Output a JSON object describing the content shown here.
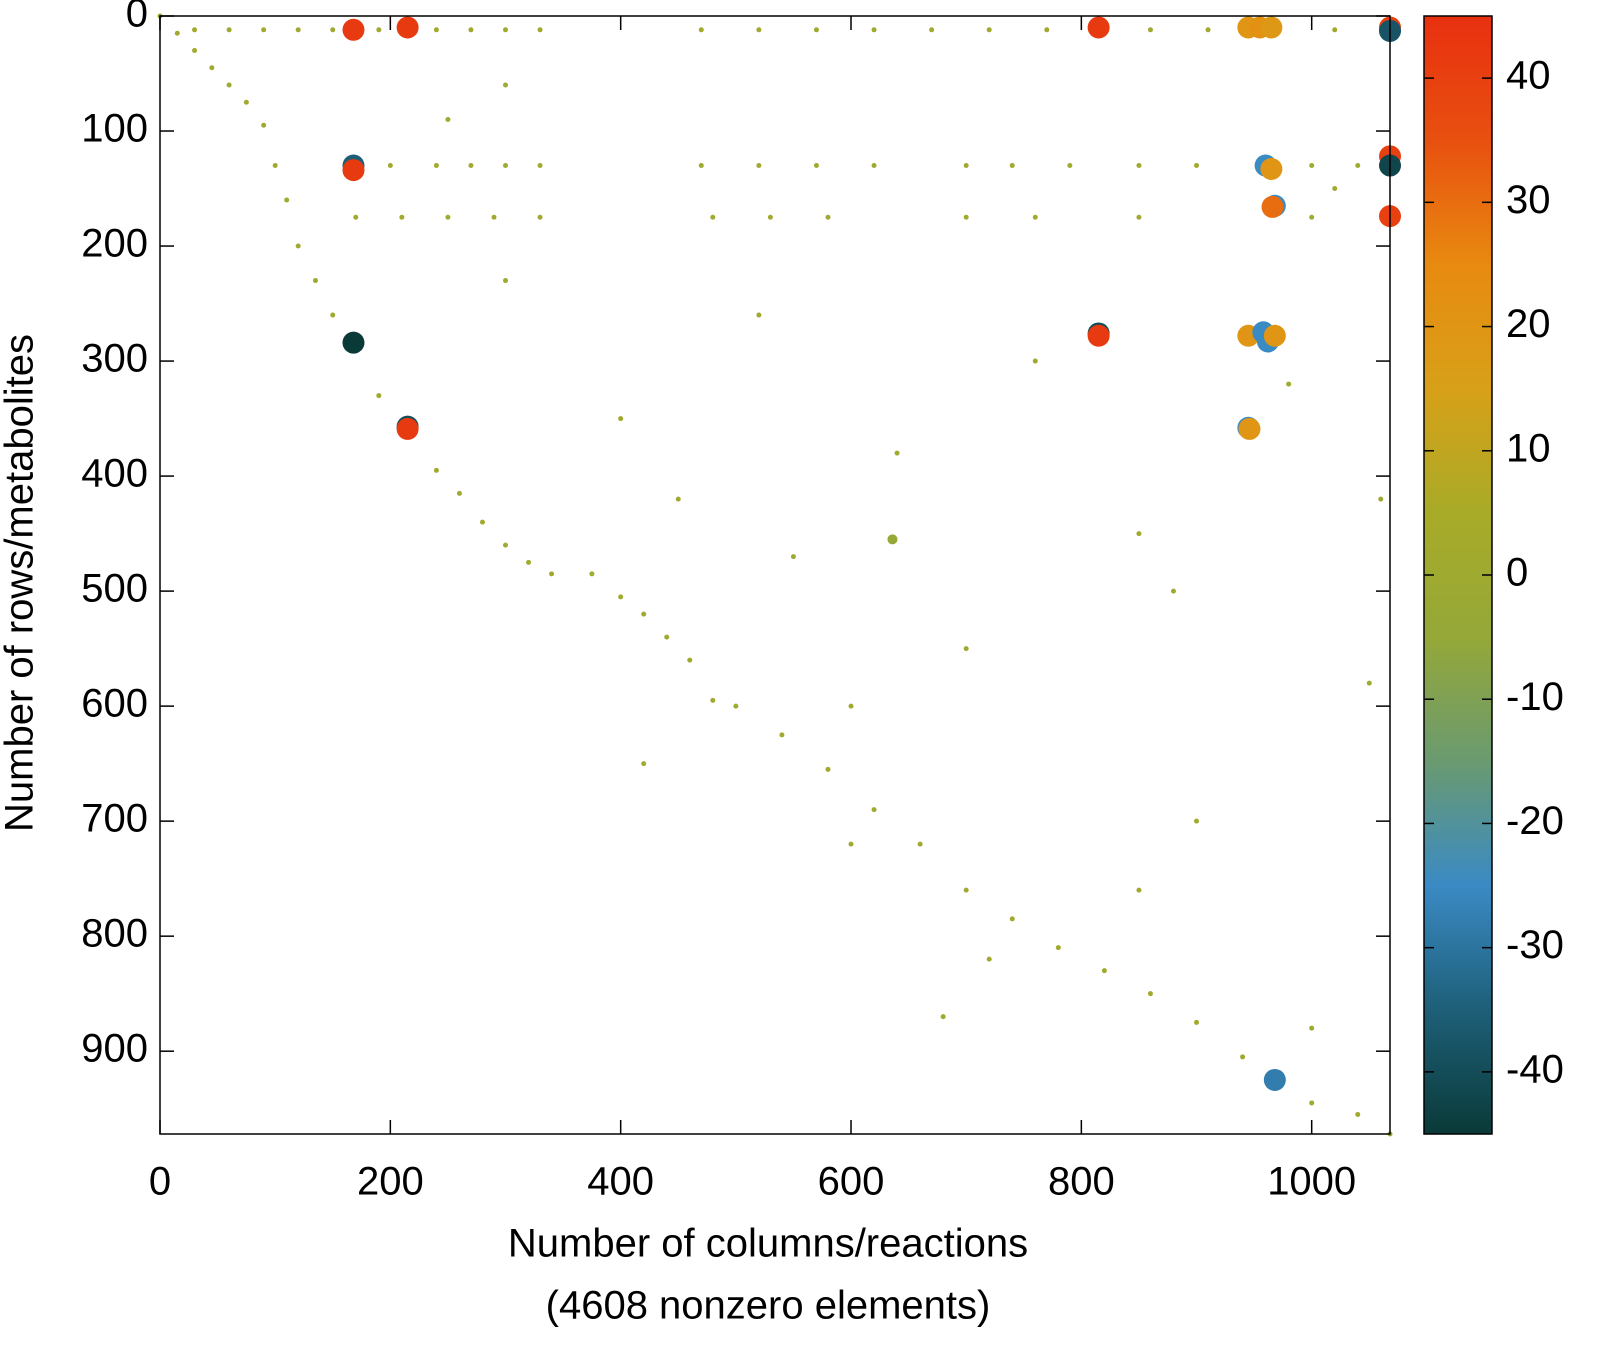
{
  "chart_data": {
    "type": "scatter",
    "xlabel": "Number of columns/reactions",
    "xlabel2": "(4608 nonzero elements)",
    "ylabel": "Number of rows/metabolites",
    "xlim": [
      0,
      1068
    ],
    "ylim": [
      972,
      0
    ],
    "xticks": [
      0,
      200,
      400,
      600,
      800,
      1000
    ],
    "yticks": [
      0,
      100,
      200,
      300,
      400,
      500,
      600,
      700,
      800,
      900
    ],
    "clim": [
      -45,
      45
    ],
    "cticks": [
      -40,
      -30,
      -20,
      -10,
      0,
      10,
      20,
      30,
      40
    ],
    "colormap": [
      "#0a3a38",
      "#1e5f78",
      "#3a8ac4",
      "#6a9a70",
      "#95a838",
      "#a8ab28",
      "#d8a018",
      "#e88a10",
      "#e85010",
      "#e83010"
    ],
    "x": [
      0,
      15,
      30,
      45,
      60,
      75,
      90,
      100,
      110,
      120,
      135,
      150,
      168,
      190,
      215,
      240,
      260,
      280,
      300,
      320,
      340,
      375,
      400,
      420,
      440,
      460,
      480,
      500,
      540,
      580,
      620,
      660,
      700,
      740,
      780,
      820,
      860,
      900,
      940,
      1000,
      1040,
      1068,
      30,
      60,
      90,
      120,
      150,
      190,
      240,
      270,
      300,
      330,
      470,
      520,
      570,
      620,
      670,
      720,
      770,
      860,
      910,
      1020,
      200,
      240,
      270,
      300,
      330,
      470,
      520,
      570,
      620,
      700,
      740,
      790,
      850,
      900,
      1000,
      1040,
      170,
      210,
      250,
      290,
      330,
      480,
      530,
      580,
      700,
      760,
      850,
      1000,
      250,
      300,
      400,
      450,
      520,
      550,
      600,
      640,
      700,
      760,
      850,
      900,
      980,
      1050,
      420,
      600,
      680,
      720,
      850,
      1000,
      880,
      1020,
      300,
      1060,
      168,
      215,
      815,
      945,
      955,
      965,
      1068,
      1068,
      168,
      168,
      1068,
      1068,
      1068,
      960,
      965,
      968,
      966,
      168,
      815,
      815,
      945,
      958,
      962,
      968,
      215,
      215,
      945,
      946,
      968,
      636
    ],
    "y": [
      0,
      15,
      30,
      45,
      60,
      75,
      95,
      130,
      160,
      200,
      230,
      260,
      284,
      330,
      360,
      395,
      415,
      440,
      460,
      475,
      485,
      485,
      505,
      520,
      540,
      560,
      595,
      600,
      625,
      655,
      690,
      720,
      760,
      785,
      810,
      830,
      850,
      875,
      905,
      945,
      955,
      972,
      12,
      12,
      12,
      12,
      12,
      12,
      12,
      12,
      12,
      12,
      12,
      12,
      12,
      12,
      12,
      12,
      12,
      12,
      12,
      12,
      130,
      130,
      130,
      130,
      130,
      130,
      130,
      130,
      130,
      130,
      130,
      130,
      130,
      130,
      130,
      130,
      175,
      175,
      175,
      175,
      175,
      175,
      175,
      175,
      175,
      175,
      175,
      175,
      90,
      230,
      350,
      420,
      260,
      470,
      600,
      380,
      550,
      300,
      450,
      700,
      320,
      580,
      650,
      720,
      870,
      820,
      760,
      880,
      500,
      150,
      60,
      420,
      12,
      10,
      10,
      10,
      10,
      10,
      10,
      13,
      130,
      134,
      122,
      130,
      174,
      130,
      133,
      165,
      166,
      284,
      276,
      278,
      278,
      275,
      283,
      278,
      357,
      359,
      358,
      359,
      925,
      455
    ],
    "values": [
      1,
      1,
      1,
      1,
      1,
      1,
      1,
      1,
      1,
      1,
      1,
      1,
      1,
      1,
      1,
      1,
      1,
      1,
      1,
      1,
      1,
      1,
      1,
      1,
      1,
      1,
      1,
      1,
      1,
      1,
      1,
      1,
      1,
      1,
      1,
      1,
      1,
      1,
      1,
      1,
      1,
      1,
      1,
      1,
      1,
      1,
      1,
      1,
      1,
      1,
      1,
      1,
      1,
      1,
      1,
      1,
      1,
      1,
      1,
      1,
      1,
      1,
      1,
      1,
      1,
      1,
      1,
      1,
      1,
      1,
      1,
      1,
      1,
      1,
      1,
      1,
      1,
      1,
      1,
      1,
      1,
      1,
      1,
      1,
      1,
      1,
      1,
      1,
      1,
      1,
      1,
      1,
      1,
      1,
      1,
      1,
      1,
      1,
      1,
      1,
      1,
      1,
      1,
      1,
      1,
      1,
      1,
      1,
      1,
      1,
      1,
      1,
      1,
      1,
      42,
      42,
      42,
      20,
      22,
      18,
      40,
      -38,
      -35,
      42,
      40,
      -42,
      40,
      -25,
      20,
      -25,
      30,
      -45,
      -40,
      42,
      20,
      -25,
      -25,
      20,
      -40,
      42,
      -25,
      20,
      -28,
      -5
    ]
  }
}
